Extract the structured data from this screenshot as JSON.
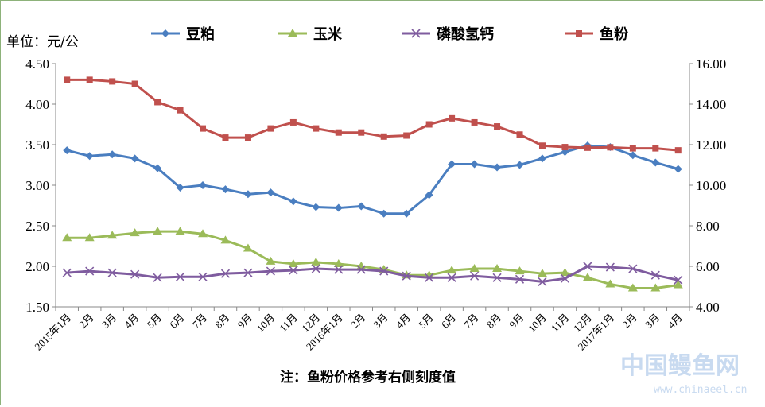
{
  "chart_data": {
    "type": "line",
    "ylabel": "单位：元/公",
    "note": "注：鱼粉价格参考右侧刻度值",
    "categories": [
      "2015年1月",
      "2月",
      "3月",
      "4月",
      "5月",
      "6月",
      "7月",
      "8月",
      "9月",
      "10月",
      "11月",
      "12月",
      "2016年1月",
      "2月",
      "3月",
      "4月",
      "5月",
      "6月",
      "7月",
      "8月",
      "9月",
      "10月",
      "11月",
      "12月",
      "2017年1月",
      "2月",
      "3月",
      "4月"
    ],
    "y_left": {
      "min": 1.5,
      "max": 4.5,
      "ticks": [
        "1.50",
        "2.00",
        "2.50",
        "3.00",
        "3.50",
        "4.00",
        "4.50"
      ]
    },
    "y_right": {
      "min": 4.0,
      "max": 16.0,
      "ticks": [
        "4.00",
        "6.00",
        "8.00",
        "10.00",
        "12.00",
        "14.00",
        "16.00"
      ]
    },
    "series": [
      {
        "name": "豆粕",
        "axis": "left",
        "color": "#4A7EC0",
        "marker": "diamond",
        "values": [
          3.43,
          3.36,
          3.38,
          3.33,
          3.21,
          2.97,
          3.0,
          2.95,
          2.89,
          2.91,
          2.8,
          2.73,
          2.72,
          2.74,
          2.65,
          2.65,
          2.88,
          3.26,
          3.26,
          3.22,
          3.25,
          3.33,
          3.41,
          3.49,
          3.47,
          3.37,
          3.28,
          3.2
        ]
      },
      {
        "name": "玉米",
        "axis": "left",
        "color": "#9BBB59",
        "marker": "triangle",
        "values": [
          2.35,
          2.35,
          2.38,
          2.41,
          2.43,
          2.43,
          2.4,
          2.32,
          2.22,
          2.06,
          2.03,
          2.05,
          2.03,
          2.0,
          1.96,
          1.89,
          1.89,
          1.95,
          1.97,
          1.97,
          1.94,
          1.91,
          1.92,
          1.86,
          1.78,
          1.73,
          1.73,
          1.77
        ]
      },
      {
        "name": "磷酸氢钙",
        "axis": "left",
        "color": "#7F5C9F",
        "marker": "x",
        "values": [
          1.92,
          1.94,
          1.92,
          1.9,
          1.86,
          1.87,
          1.87,
          1.91,
          1.92,
          1.94,
          1.95,
          1.97,
          1.96,
          1.96,
          1.94,
          1.88,
          1.86,
          1.86,
          1.88,
          1.86,
          1.84,
          1.81,
          1.85,
          2.0,
          1.99,
          1.97,
          1.89,
          1.83
        ]
      },
      {
        "name": "鱼粉",
        "axis": "right",
        "color": "#C0504D",
        "marker": "square",
        "values": [
          15.2,
          15.2,
          15.12,
          15.0,
          14.1,
          13.7,
          12.8,
          12.35,
          12.35,
          12.8,
          13.1,
          12.8,
          12.6,
          12.6,
          12.4,
          12.45,
          13.0,
          13.3,
          13.1,
          12.9,
          12.5,
          11.95,
          11.88,
          11.85,
          11.87,
          11.82,
          11.82,
          11.72
        ]
      }
    ]
  },
  "watermark": {
    "line1": "中国鳗鱼网",
    "line2": "www.chinaeel.cn"
  }
}
